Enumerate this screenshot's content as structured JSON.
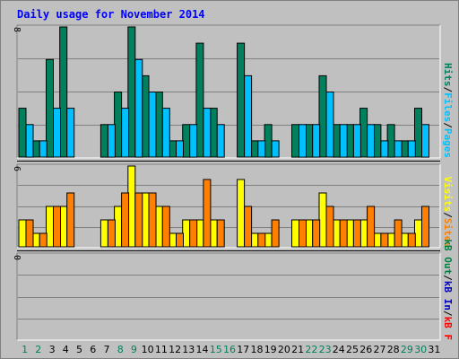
{
  "chart_data": {
    "type": "bar",
    "title": "Daily usage for November 2014",
    "colors": {
      "background": "#c0c0c0",
      "title": "#0000ff",
      "hits": "#00805c",
      "files": "#00c0ff",
      "visits": "#ffff00",
      "sites": "#ff8000",
      "kb_in": "#0000c0",
      "kb_out": "#008040",
      "kb_f": "#ff0000",
      "weekend_day": "#00805c",
      "weekday": "#000000",
      "separator": "#000000"
    },
    "days": [
      "1",
      "2",
      "3",
      "4",
      "5",
      "6",
      "7",
      "8",
      "9",
      "10",
      "11",
      "12",
      "13",
      "14",
      "15",
      "16",
      "17",
      "18",
      "19",
      "20",
      "21",
      "22",
      "23",
      "24",
      "25",
      "26",
      "27",
      "28",
      "29",
      "30",
      "31"
    ],
    "weekend_days": [
      "1",
      "2",
      "8",
      "9",
      "15",
      "16",
      "22",
      "23",
      "29",
      "30"
    ],
    "panels": [
      {
        "axis_max": "8",
        "ylim": [
          0,
          8
        ],
        "series": [
          {
            "name": "Hits",
            "color": "#00805c",
            "values": [
              3,
              1,
              6,
              8,
              0,
              0,
              2,
              4,
              8,
              5,
              4,
              1,
              2,
              7,
              3,
              0,
              7,
              1,
              2,
              0,
              2,
              2,
              5,
              2,
              2,
              3,
              2,
              2,
              1,
              3,
              0
            ]
          },
          {
            "name": "Files",
            "color": "#00c0ff",
            "values": [
              2,
              1,
              3,
              3,
              0,
              0,
              2,
              3,
              6,
              4,
              3,
              1,
              2,
              3,
              2,
              0,
              5,
              1,
              1,
              0,
              2,
              2,
              4,
              2,
              2,
              2,
              1,
              1,
              1,
              2,
              0
            ]
          }
        ],
        "legend": [
          {
            "label": "Hits",
            "color": "#00805c"
          },
          {
            "label": "Files",
            "color": "#00c0ff"
          },
          {
            "label": "Pages",
            "color": "#00c0ff"
          }
        ]
      },
      {
        "axis_max": "6",
        "ylim": [
          0,
          6
        ],
        "series": [
          {
            "name": "Visits",
            "color": "#ffff00",
            "values": [
              2,
              1,
              3,
              3,
              0,
              0,
              2,
              3,
              6,
              4,
              3,
              1,
              2,
              2,
              2,
              0,
              5,
              1,
              1,
              0,
              2,
              2,
              4,
              2,
              2,
              2,
              1,
              1,
              1,
              2,
              0
            ]
          },
          {
            "name": "Sites",
            "color": "#ff8000",
            "values": [
              2,
              1,
              3,
              4,
              0,
              0,
              2,
              4,
              4,
              4,
              3,
              1,
              2,
              5,
              2,
              0,
              3,
              1,
              2,
              0,
              2,
              2,
              3,
              2,
              2,
              3,
              1,
              2,
              1,
              3,
              0
            ]
          }
        ],
        "legend": [
          {
            "label": "Visits",
            "color": "#ffff00"
          },
          {
            "label": "Sites",
            "color": "#ff8000"
          }
        ]
      },
      {
        "axis_max": "0",
        "ylim": [
          0,
          1
        ],
        "series": [],
        "legend": [
          {
            "label": "kB Out",
            "color": "#008040"
          },
          {
            "label": "kB In",
            "color": "#0000c0"
          },
          {
            "label": "kB F",
            "color": "#ff0000"
          }
        ]
      }
    ]
  }
}
